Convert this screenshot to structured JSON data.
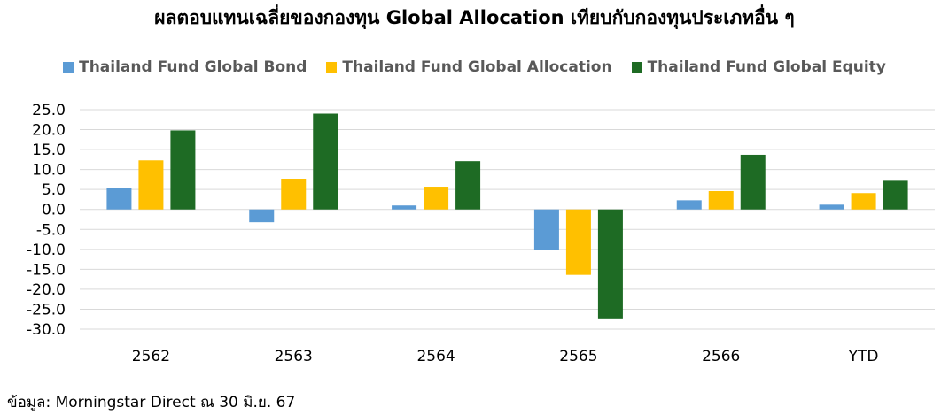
{
  "chart_data": {
    "type": "bar",
    "title": "ผลตอบแทนเฉลี่ยของกองทุน Global Allocation เทียบกับกองทุนประเภทอื่น ๆ",
    "categories": [
      "2562",
      "2563",
      "2564",
      "2565",
      "2566",
      "YTD"
    ],
    "series": [
      {
        "name": "Thailand Fund Global Bond",
        "color": "#5B9BD5",
        "values": [
          5.3,
          -3.2,
          1.0,
          -10.2,
          2.3,
          1.2
        ]
      },
      {
        "name": "Thailand Fund Global Allocation",
        "color": "#FFC000",
        "values": [
          12.3,
          7.7,
          5.7,
          -16.4,
          4.6,
          4.1
        ]
      },
      {
        "name": "Thailand Fund Global Equity",
        "color": "#1E6B24",
        "values": [
          19.8,
          24.0,
          12.1,
          -27.3,
          13.7,
          7.4
        ]
      }
    ],
    "ylim": [
      -30,
      25
    ],
    "yticks": [
      "25.0",
      "20.0",
      "15.0",
      "10.0",
      "5.0",
      "0.0",
      "-5.0",
      "-10.0",
      "-15.0",
      "-20.0",
      "-25.0",
      "-30.0"
    ],
    "grid": true,
    "legend_position": "top",
    "source": "ข้อมูล: Morningstar Direct ณ 30 มิ.ย. 67"
  }
}
